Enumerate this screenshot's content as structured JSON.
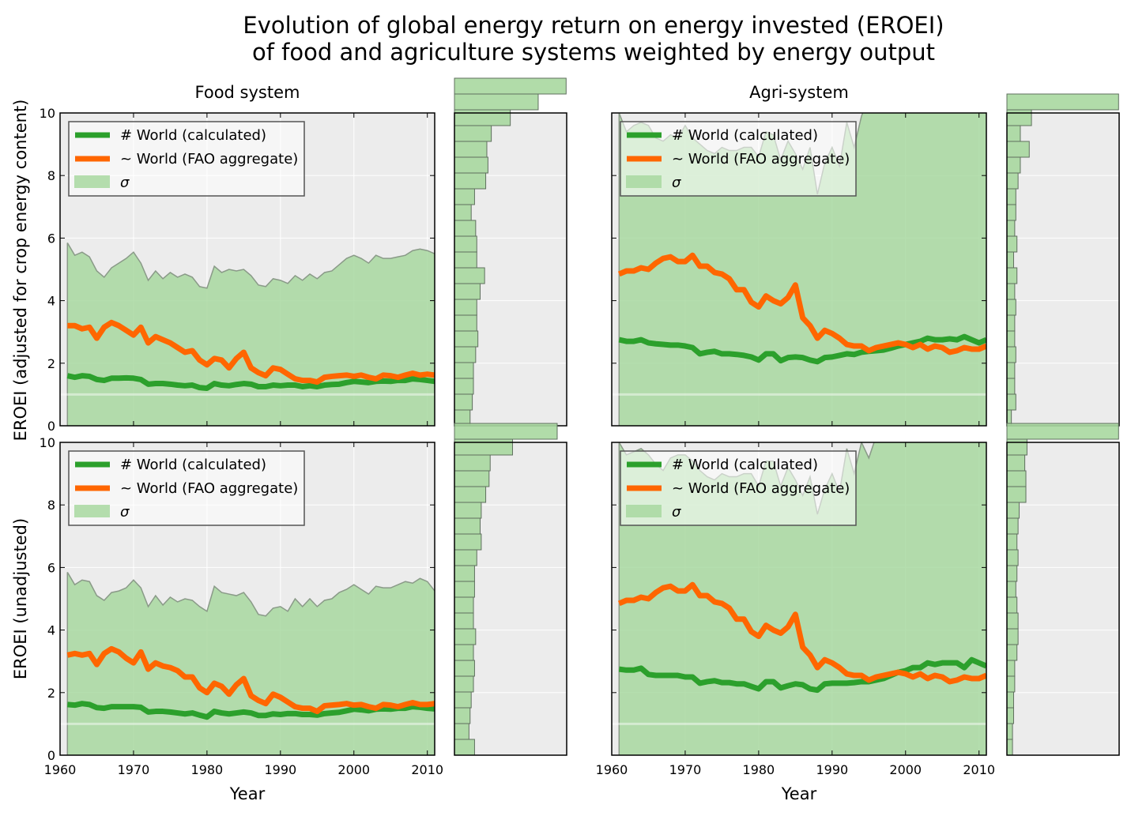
{
  "title_line1": "Evolution of global energy return on energy invested (EROEI)",
  "title_line2": "of food and agriculture systems weighted by energy output",
  "column_titles": [
    "Food system",
    "Agri-system"
  ],
  "row_ylabels": [
    "EROEI (adjusted for crop energy content)",
    "EROEI (unadjusted)"
  ],
  "xlabel": "Year",
  "legend": [
    "# World (calculated)",
    "~ World (FAO aggregate)",
    "σ"
  ],
  "colors": {
    "calculated": "#2ca02c",
    "fao": "#ff6600",
    "sigma": "#a8d8a0",
    "panel_bg": "#ececec"
  },
  "chart_data": [
    {
      "id": "food_adjusted",
      "type": "line",
      "title": "Food system",
      "ylabel": "EROEI (adjusted for crop energy content)",
      "xlim": [
        1960,
        2011
      ],
      "ylim": [
        0,
        10
      ],
      "xticks": [
        1960,
        1970,
        1980,
        1990,
        2000,
        2010
      ],
      "yticks": [
        0,
        2,
        4,
        6,
        8,
        10
      ],
      "years": [
        1961,
        1962,
        1963,
        1964,
        1965,
        1966,
        1967,
        1968,
        1969,
        1970,
        1971,
        1972,
        1973,
        1974,
        1975,
        1976,
        1977,
        1978,
        1979,
        1980,
        1981,
        1982,
        1983,
        1984,
        1985,
        1986,
        1987,
        1988,
        1989,
        1990,
        1991,
        1992,
        1993,
        1994,
        1995,
        1996,
        1997,
        1998,
        1999,
        2000,
        2001,
        2002,
        2003,
        2004,
        2005,
        2006,
        2007,
        2008,
        2009,
        2010,
        2011
      ],
      "series": [
        {
          "name": "# World (calculated)",
          "values": [
            1.6,
            1.55,
            1.6,
            1.58,
            1.48,
            1.45,
            1.52,
            1.52,
            1.53,
            1.52,
            1.48,
            1.33,
            1.35,
            1.35,
            1.33,
            1.3,
            1.28,
            1.3,
            1.22,
            1.2,
            1.35,
            1.3,
            1.28,
            1.32,
            1.35,
            1.33,
            1.25,
            1.25,
            1.3,
            1.28,
            1.3,
            1.3,
            1.25,
            1.28,
            1.25,
            1.3,
            1.32,
            1.33,
            1.38,
            1.42,
            1.4,
            1.38,
            1.42,
            1.43,
            1.42,
            1.45,
            1.45,
            1.5,
            1.48,
            1.45,
            1.42
          ]
        },
        {
          "name": "~ World (FAO aggregate)",
          "values": [
            3.2,
            3.2,
            3.1,
            3.15,
            2.8,
            3.15,
            3.3,
            3.2,
            3.05,
            2.9,
            3.15,
            2.65,
            2.85,
            2.75,
            2.65,
            2.5,
            2.35,
            2.4,
            2.1,
            1.95,
            2.15,
            2.1,
            1.85,
            2.15,
            2.35,
            1.85,
            1.7,
            1.6,
            1.85,
            1.8,
            1.65,
            1.5,
            1.45,
            1.45,
            1.4,
            1.55,
            1.58,
            1.6,
            1.62,
            1.58,
            1.62,
            1.55,
            1.5,
            1.62,
            1.6,
            1.55,
            1.62,
            1.68,
            1.62,
            1.65,
            1.62
          ]
        },
        {
          "name": "σ",
          "values": [
            5.85,
            5.45,
            5.55,
            5.4,
            4.95,
            4.75,
            5.05,
            5.2,
            5.35,
            5.55,
            5.2,
            4.65,
            4.95,
            4.7,
            4.9,
            4.75,
            4.85,
            4.75,
            4.45,
            4.4,
            5.1,
            4.9,
            5.0,
            4.95,
            5.0,
            4.8,
            4.5,
            4.45,
            4.7,
            4.65,
            4.55,
            4.8,
            4.65,
            4.85,
            4.7,
            4.9,
            4.95,
            5.15,
            5.35,
            5.45,
            5.35,
            5.2,
            5.45,
            5.35,
            5.35,
            5.4,
            5.45,
            5.6,
            5.65,
            5.6,
            5.5
          ]
        }
      ],
      "histogram": [
        0.14,
        0.16,
        0.17,
        0.17,
        0.19,
        0.21,
        0.2,
        0.2,
        0.23,
        0.27,
        0.2,
        0.2,
        0.19,
        0.15,
        0.18,
        0.28,
        0.3,
        0.29,
        0.33,
        0.5,
        0.75,
        1.0
      ]
    },
    {
      "id": "agri_adjusted",
      "type": "line",
      "title": "Agri-system",
      "ylabel": "",
      "xlim": [
        1960,
        2011
      ],
      "ylim": [
        0,
        10
      ],
      "xticks": [
        1960,
        1970,
        1980,
        1990,
        2000,
        2010
      ],
      "yticks": [
        0,
        2,
        4,
        6,
        8,
        10
      ],
      "years": [
        1961,
        1962,
        1963,
        1964,
        1965,
        1966,
        1967,
        1968,
        1969,
        1970,
        1971,
        1972,
        1973,
        1974,
        1975,
        1976,
        1977,
        1978,
        1979,
        1980,
        1981,
        1982,
        1983,
        1984,
        1985,
        1986,
        1987,
        1988,
        1989,
        1990,
        1991,
        1992,
        1993,
        1994,
        1995,
        1996,
        1997,
        1998,
        1999,
        2000,
        2001,
        2002,
        2003,
        2004,
        2005,
        2006,
        2007,
        2008,
        2009,
        2010,
        2011
      ],
      "series": [
        {
          "name": "# World (calculated)",
          "values": [
            2.75,
            2.7,
            2.7,
            2.75,
            2.65,
            2.62,
            2.6,
            2.58,
            2.58,
            2.55,
            2.5,
            2.3,
            2.35,
            2.38,
            2.3,
            2.3,
            2.28,
            2.25,
            2.2,
            2.1,
            2.3,
            2.3,
            2.08,
            2.18,
            2.2,
            2.18,
            2.1,
            2.05,
            2.18,
            2.2,
            2.25,
            2.3,
            2.28,
            2.35,
            2.38,
            2.4,
            2.42,
            2.48,
            2.55,
            2.6,
            2.65,
            2.7,
            2.8,
            2.75,
            2.75,
            2.78,
            2.75,
            2.85,
            2.75,
            2.65,
            2.75
          ]
        },
        {
          "name": "~ World (FAO aggregate)",
          "values": [
            4.85,
            4.95,
            4.95,
            5.05,
            5.0,
            5.2,
            5.35,
            5.4,
            5.25,
            5.25,
            5.45,
            5.1,
            5.1,
            4.9,
            4.85,
            4.7,
            4.35,
            4.35,
            3.95,
            3.8,
            4.15,
            4.0,
            3.9,
            4.1,
            4.5,
            3.45,
            3.2,
            2.8,
            3.05,
            2.95,
            2.8,
            2.6,
            2.55,
            2.55,
            2.4,
            2.5,
            2.55,
            2.6,
            2.65,
            2.6,
            2.5,
            2.6,
            2.45,
            2.55,
            2.5,
            2.35,
            2.4,
            2.5,
            2.45,
            2.45,
            2.55
          ]
        },
        {
          "name": "σ",
          "values": [
            10,
            9.4,
            9.6,
            9.7,
            9.6,
            9.2,
            9.1,
            9.3,
            9.2,
            9.6,
            9.2,
            9.0,
            8.8,
            8.7,
            8.9,
            8.8,
            8.8,
            8.9,
            8.9,
            8.6,
            9.4,
            9.3,
            8.5,
            9.1,
            8.7,
            8.2,
            8.9,
            7.4,
            8.4,
            8.9,
            8.3,
            9.7,
            8.9,
            9.9,
            10.5,
            10.2,
            10.6,
            11,
            11,
            11,
            11,
            11,
            11,
            11,
            11,
            11,
            11,
            11,
            11,
            11,
            11
          ]
        }
      ],
      "histogram": [
        0.04,
        0.08,
        0.07,
        0.07,
        0.08,
        0.07,
        0.07,
        0.08,
        0.07,
        0.09,
        0.06,
        0.09,
        0.07,
        0.08,
        0.08,
        0.1,
        0.12,
        0.2,
        0.12,
        0.22,
        1.0
      ]
    },
    {
      "id": "food_unadjusted",
      "type": "line",
      "title": "",
      "ylabel": "EROEI (unadjusted)",
      "xlabel": "Year",
      "xlim": [
        1960,
        2011
      ],
      "ylim": [
        0,
        10
      ],
      "xticks": [
        1960,
        1970,
        1980,
        1990,
        2000,
        2010
      ],
      "yticks": [
        0,
        2,
        4,
        6,
        8,
        10
      ],
      "years": [
        1961,
        1962,
        1963,
        1964,
        1965,
        1966,
        1967,
        1968,
        1969,
        1970,
        1971,
        1972,
        1973,
        1974,
        1975,
        1976,
        1977,
        1978,
        1979,
        1980,
        1981,
        1982,
        1983,
        1984,
        1985,
        1986,
        1987,
        1988,
        1989,
        1990,
        1991,
        1992,
        1993,
        1994,
        1995,
        1996,
        1997,
        1998,
        1999,
        2000,
        2001,
        2002,
        2003,
        2004,
        2005,
        2006,
        2007,
        2008,
        2009,
        2010,
        2011
      ],
      "series": [
        {
          "name": "# World (calculated)",
          "values": [
            1.62,
            1.6,
            1.65,
            1.62,
            1.52,
            1.5,
            1.55,
            1.55,
            1.55,
            1.55,
            1.53,
            1.38,
            1.4,
            1.4,
            1.38,
            1.35,
            1.32,
            1.35,
            1.28,
            1.22,
            1.4,
            1.35,
            1.32,
            1.35,
            1.38,
            1.35,
            1.27,
            1.27,
            1.32,
            1.3,
            1.33,
            1.33,
            1.3,
            1.3,
            1.28,
            1.33,
            1.35,
            1.37,
            1.42,
            1.47,
            1.45,
            1.42,
            1.47,
            1.48,
            1.47,
            1.5,
            1.5,
            1.55,
            1.53,
            1.5,
            1.48
          ]
        },
        {
          "name": "~ World (FAO aggregate)",
          "values": [
            3.2,
            3.25,
            3.2,
            3.25,
            2.9,
            3.25,
            3.4,
            3.3,
            3.1,
            2.95,
            3.3,
            2.75,
            2.95,
            2.85,
            2.8,
            2.7,
            2.5,
            2.5,
            2.15,
            2.0,
            2.3,
            2.2,
            1.95,
            2.25,
            2.45,
            1.9,
            1.75,
            1.65,
            1.95,
            1.85,
            1.7,
            1.55,
            1.5,
            1.5,
            1.4,
            1.58,
            1.6,
            1.62,
            1.65,
            1.6,
            1.62,
            1.55,
            1.5,
            1.62,
            1.6,
            1.55,
            1.62,
            1.68,
            1.62,
            1.62,
            1.65
          ]
        },
        {
          "name": "σ",
          "values": [
            5.85,
            5.45,
            5.6,
            5.55,
            5.1,
            4.95,
            5.2,
            5.25,
            5.35,
            5.6,
            5.35,
            4.75,
            5.1,
            4.8,
            5.05,
            4.9,
            5.0,
            4.95,
            4.75,
            4.6,
            5.4,
            5.2,
            5.15,
            5.1,
            5.2,
            4.9,
            4.5,
            4.45,
            4.7,
            4.75,
            4.6,
            5.0,
            4.75,
            5.0,
            4.75,
            4.95,
            5.0,
            5.2,
            5.3,
            5.45,
            5.3,
            5.15,
            5.4,
            5.35,
            5.35,
            5.45,
            5.55,
            5.5,
            5.65,
            5.55,
            5.25
          ]
        }
      ],
      "histogram": [
        0.18,
        0.13,
        0.14,
        0.15,
        0.17,
        0.18,
        0.17,
        0.19,
        0.17,
        0.17,
        0.18,
        0.18,
        0.2,
        0.24,
        0.23,
        0.24,
        0.28,
        0.31,
        0.32,
        0.52,
        0.92
      ]
    },
    {
      "id": "agri_unadjusted",
      "type": "line",
      "title": "",
      "ylabel": "",
      "xlabel": "Year",
      "xlim": [
        1960,
        2011
      ],
      "ylim": [
        0,
        10
      ],
      "xticks": [
        1960,
        1970,
        1980,
        1990,
        2000,
        2010
      ],
      "yticks": [
        0,
        2,
        4,
        6,
        8,
        10
      ],
      "years": [
        1961,
        1962,
        1963,
        1964,
        1965,
        1966,
        1967,
        1968,
        1969,
        1970,
        1971,
        1972,
        1973,
        1974,
        1975,
        1976,
        1977,
        1978,
        1979,
        1980,
        1981,
        1982,
        1983,
        1984,
        1985,
        1986,
        1987,
        1988,
        1989,
        1990,
        1991,
        1992,
        1993,
        1994,
        1995,
        1996,
        1997,
        1998,
        1999,
        2000,
        2001,
        2002,
        2003,
        2004,
        2005,
        2006,
        2007,
        2008,
        2009,
        2010,
        2011
      ],
      "series": [
        {
          "name": "# World (calculated)",
          "values": [
            2.75,
            2.72,
            2.72,
            2.78,
            2.58,
            2.55,
            2.55,
            2.55,
            2.55,
            2.5,
            2.5,
            2.3,
            2.35,
            2.38,
            2.32,
            2.32,
            2.28,
            2.28,
            2.2,
            2.12,
            2.35,
            2.35,
            2.15,
            2.22,
            2.28,
            2.25,
            2.12,
            2.08,
            2.28,
            2.3,
            2.3,
            2.3,
            2.32,
            2.35,
            2.35,
            2.4,
            2.45,
            2.55,
            2.65,
            2.7,
            2.8,
            2.8,
            2.95,
            2.9,
            2.95,
            2.95,
            2.95,
            2.8,
            3.05,
            2.95,
            2.85
          ]
        },
        {
          "name": "~ World (FAO aggregate)",
          "values": [
            4.85,
            4.95,
            4.95,
            5.05,
            5.0,
            5.2,
            5.35,
            5.4,
            5.25,
            5.25,
            5.45,
            5.1,
            5.1,
            4.9,
            4.85,
            4.7,
            4.35,
            4.35,
            3.95,
            3.8,
            4.15,
            4.0,
            3.9,
            4.1,
            4.5,
            3.45,
            3.2,
            2.8,
            3.05,
            2.95,
            2.8,
            2.6,
            2.55,
            2.55,
            2.4,
            2.5,
            2.55,
            2.6,
            2.65,
            2.6,
            2.5,
            2.6,
            2.45,
            2.55,
            2.5,
            2.35,
            2.4,
            2.5,
            2.45,
            2.45,
            2.55
          ]
        },
        {
          "name": "σ",
          "values": [
            10,
            9.6,
            9.7,
            9.8,
            9.6,
            9.3,
            9.1,
            9.5,
            9.6,
            9.6,
            9.4,
            9.1,
            8.9,
            8.8,
            9.0,
            8.9,
            8.9,
            9.0,
            9.0,
            8.6,
            9.4,
            9.4,
            8.6,
            9.2,
            8.8,
            8.3,
            8.9,
            7.7,
            8.5,
            9.0,
            8.4,
            9.8,
            9.0,
            10,
            9.5,
            10.2,
            10.6,
            11,
            11,
            11,
            11,
            11,
            11,
            11,
            11,
            11,
            11,
            11,
            11,
            11,
            11
          ]
        }
      ],
      "histogram": [
        0.05,
        0.05,
        0.06,
        0.06,
        0.07,
        0.07,
        0.09,
        0.1,
        0.1,
        0.09,
        0.08,
        0.09,
        0.1,
        0.09,
        0.1,
        0.11,
        0.17,
        0.17,
        0.16,
        0.18,
        1.0
      ]
    }
  ]
}
